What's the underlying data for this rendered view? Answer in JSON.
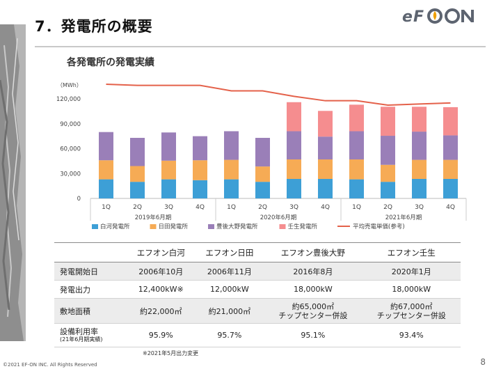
{
  "slide": {
    "title": "7．発電所の概要",
    "logo_text": "eFON",
    "copyright": "©2021 EF-ON INC.  All Rights Reserved",
    "page_number": "8",
    "footnote": "※2021年5月出力変更"
  },
  "colors": {
    "shirakawa": "#3d9fd6",
    "hita": "#f6ab55",
    "bungo": "#9a7fb8",
    "mibu": "#f58d8f",
    "price_line": "#e4614a",
    "logo": "#5d6470",
    "logo_accent": "#f0a000"
  },
  "chart_data": {
    "type": "bar",
    "stacked": true,
    "title": "各発電所の発電実績",
    "unit_label": "（MWh）",
    "ylim": [
      0,
      120000
    ],
    "y_ticks": [
      "0",
      "30,000",
      "60,000",
      "90,000",
      "120,000"
    ],
    "y_tick_values": [
      0,
      30000,
      60000,
      90000,
      120000
    ],
    "categories": [
      "1Q",
      "2Q",
      "3Q",
      "4Q",
      "1Q",
      "2Q",
      "3Q",
      "4Q",
      "1Q",
      "2Q",
      "3Q",
      "4Q"
    ],
    "year_groups": [
      {
        "label": "2019年6月期",
        "span": [
          0,
          3
        ]
      },
      {
        "label": "2020年6月期",
        "span": [
          4,
          7
        ]
      },
      {
        "label": "2021年6月期",
        "span": [
          8,
          11
        ]
      }
    ],
    "series": [
      {
        "name": "白河発電所",
        "color_key": "shirakawa",
        "values": [
          23000,
          20000,
          23000,
          22000,
          23000,
          20000,
          23500,
          23500,
          23000,
          20000,
          23500,
          23500
        ]
      },
      {
        "name": "日田発電所",
        "color_key": "hita",
        "values": [
          23000,
          19000,
          22500,
          24000,
          23500,
          18500,
          23500,
          23500,
          24000,
          20500,
          23000,
          23000
        ]
      },
      {
        "name": "豊後大野発電所",
        "color_key": "bungo",
        "values": [
          34000,
          34000,
          34000,
          29000,
          34500,
          34500,
          34000,
          27500,
          34000,
          35000,
          34000,
          29500
        ]
      },
      {
        "name": "壬生発電所",
        "color_key": "mibu",
        "values": [
          0,
          0,
          0,
          0,
          0,
          0,
          35000,
          31000,
          32000,
          35000,
          30000,
          34000
        ]
      }
    ],
    "line_series": {
      "name": "平均売電単価(参考)",
      "color_key": "price_line",
      "values": [
        0.93,
        0.92,
        0.92,
        0.92,
        0.87,
        0.87,
        0.82,
        0.78,
        0.78,
        0.74,
        0.75,
        0.76
      ]
    },
    "legend_position": "bottom"
  },
  "table": {
    "columns": [
      "エフオン白河",
      "エフオン日田",
      "エフオン豊後大野",
      "エフオン壬生"
    ],
    "rows": [
      {
        "label": "発電開始日",
        "values": [
          "2006年10月",
          "2006年11月",
          "2016年8月",
          "2020年1月"
        ]
      },
      {
        "label": "発電出力",
        "values": [
          "12,400kW※",
          "12,000kW",
          "18,000kW",
          "18,000kW"
        ]
      },
      {
        "label": "敷地面積",
        "values": [
          "約22,000㎡",
          "約21,000㎡",
          "約65,000㎡",
          "約67,000㎡"
        ],
        "notes": [
          "",
          "",
          "チップセンター併設",
          "チップセンター併設"
        ]
      },
      {
        "label": "設備利用率",
        "sub_label": "(21年6月期実績)",
        "values": [
          "95.9%",
          "95.7%",
          "95.1%",
          "93.4%"
        ]
      }
    ]
  }
}
